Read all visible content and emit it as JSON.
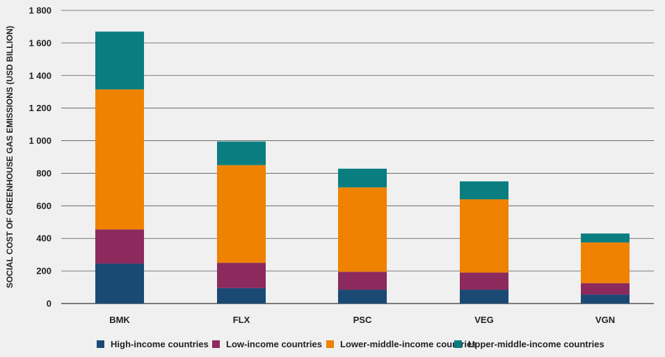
{
  "chart_data": {
    "type": "bar",
    "stacked": true,
    "categories": [
      "BMK",
      "FLX",
      "PSC",
      "VEG",
      "VGN"
    ],
    "series": [
      {
        "name": "High-income countries",
        "color": "#1a4a73",
        "values": [
          245,
          95,
          85,
          85,
          55
        ]
      },
      {
        "name": "Low-income countries",
        "color": "#8c2a5e",
        "values": [
          210,
          155,
          110,
          105,
          70
        ]
      },
      {
        "name": "Lower-middle-income countries",
        "color": "#ef8200",
        "values": [
          860,
          600,
          518,
          450,
          250
        ]
      },
      {
        "name": "Upper-middle-income countries",
        "color": "#0a7d80",
        "values": [
          355,
          145,
          115,
          110,
          55
        ]
      }
    ],
    "ylabel": "SOCIAL COST OF GREENHOUSE GAS EMISSIONS (USD BILLION)",
    "ylim": [
      0,
      1800
    ],
    "yticks": [
      0,
      200,
      400,
      600,
      800,
      1000,
      1200,
      1400,
      1600,
      1800
    ],
    "ytick_labels": [
      "0",
      "200",
      "400",
      "600",
      "800",
      "1 000",
      "1 200",
      "1 400",
      "1 600",
      "1 800"
    ],
    "grid": true,
    "legend_position": "bottom"
  }
}
